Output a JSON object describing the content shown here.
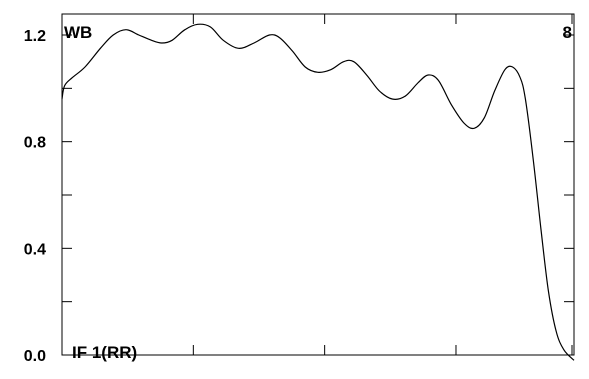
{
  "chart_data": {
    "type": "line",
    "title": "",
    "xlabel": "",
    "ylabel": "",
    "ylim": [
      0.0,
      1.2
    ],
    "y_tick_labels": [
      "1.2",
      "0.8",
      "0.4",
      "0.0"
    ],
    "y_ticks": [
      1.2,
      0.8,
      0.4,
      0.0
    ],
    "y_minor_ticks": [
      1.0,
      0.6,
      0.2
    ],
    "x_tick_count": 4,
    "grid": false,
    "annotations": {
      "top_left": "WB",
      "top_right": "8",
      "bottom_left": "IF 1(RR)"
    },
    "series": [
      {
        "color": "#000000",
        "points": [
          [
            0.0,
            0.96
          ],
          [
            0.005,
            1.01
          ],
          [
            0.02,
            1.04
          ],
          [
            0.045,
            1.08
          ],
          [
            0.075,
            1.15
          ],
          [
            0.1,
            1.2
          ],
          [
            0.125,
            1.22
          ],
          [
            0.15,
            1.2
          ],
          [
            0.175,
            1.18
          ],
          [
            0.195,
            1.17
          ],
          [
            0.215,
            1.18
          ],
          [
            0.24,
            1.22
          ],
          [
            0.265,
            1.24
          ],
          [
            0.29,
            1.23
          ],
          [
            0.315,
            1.18
          ],
          [
            0.345,
            1.15
          ],
          [
            0.375,
            1.17
          ],
          [
            0.405,
            1.2
          ],
          [
            0.425,
            1.19
          ],
          [
            0.45,
            1.14
          ],
          [
            0.475,
            1.08
          ],
          [
            0.5,
            1.06
          ],
          [
            0.525,
            1.07
          ],
          [
            0.55,
            1.1
          ],
          [
            0.57,
            1.1
          ],
          [
            0.595,
            1.05
          ],
          [
            0.62,
            0.99
          ],
          [
            0.645,
            0.96
          ],
          [
            0.67,
            0.97
          ],
          [
            0.695,
            1.02
          ],
          [
            0.715,
            1.05
          ],
          [
            0.735,
            1.03
          ],
          [
            0.76,
            0.94
          ],
          [
            0.785,
            0.87
          ],
          [
            0.805,
            0.85
          ],
          [
            0.825,
            0.89
          ],
          [
            0.845,
            0.99
          ],
          [
            0.865,
            1.07
          ],
          [
            0.88,
            1.08
          ],
          [
            0.895,
            1.04
          ],
          [
            0.905,
            0.96
          ],
          [
            0.92,
            0.74
          ],
          [
            0.935,
            0.48
          ],
          [
            0.95,
            0.24
          ],
          [
            0.965,
            0.09
          ],
          [
            0.98,
            0.02
          ],
          [
            1.0,
            -0.02
          ]
        ]
      }
    ]
  }
}
